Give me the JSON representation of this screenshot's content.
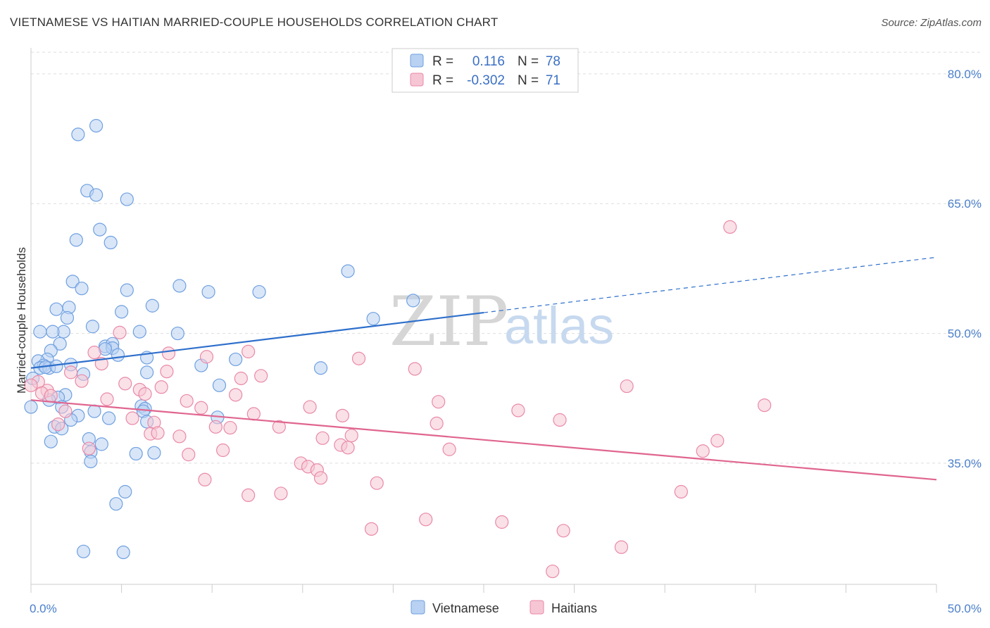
{
  "title": "VIETNAMESE VS HAITIAN MARRIED-COUPLE HOUSEHOLDS CORRELATION CHART",
  "source": "Source: ZipAtlas.com",
  "watermark": {
    "zip": "ZIP",
    "atlas": "atlas"
  },
  "chart_data": {
    "type": "scatter",
    "xlabel": "",
    "ylabel": "Married-couple Households",
    "xlim": [
      0,
      50
    ],
    "ylim": [
      21,
      83
    ],
    "x_tick_labels": [
      {
        "value": 0,
        "label": "0.0%"
      },
      {
        "value": 50,
        "label": "50.0%"
      }
    ],
    "y_tick_labels": [
      {
        "value": 35,
        "label": "35.0%"
      },
      {
        "value": 50,
        "label": "50.0%"
      },
      {
        "value": 65,
        "label": "65.0%"
      },
      {
        "value": 80,
        "label": "80.0%"
      }
    ],
    "grid": true,
    "legend": {
      "placement": "top-center",
      "rows": [
        {
          "r_label": "R =",
          "r_value": "0.116",
          "n_label": "N =",
          "n_value": "78"
        },
        {
          "r_label": "R =",
          "r_value": "-0.302",
          "n_label": "N =",
          "n_value": "71"
        }
      ]
    },
    "series": [
      {
        "name": "Vietnamese",
        "color": "#6fa0e0",
        "fill": "#b9d1f2",
        "trend": {
          "x0": 0,
          "y0": 46.0,
          "x1": 25,
          "y1": 52.4,
          "dash_x1": 50,
          "dash_y1": 58.8,
          "color": "#2e6fcc"
        },
        "points": [
          [
            3.6,
            74
          ],
          [
            2.6,
            73
          ],
          [
            3.1,
            66.5
          ],
          [
            3.6,
            66
          ],
          [
            5.3,
            65.5
          ],
          [
            3.8,
            62
          ],
          [
            2.5,
            60.8
          ],
          [
            4.4,
            60.5
          ],
          [
            17.5,
            57.2
          ],
          [
            2.3,
            56
          ],
          [
            2.8,
            55.2
          ],
          [
            8.2,
            55.5
          ],
          [
            5.3,
            55
          ],
          [
            9.8,
            54.8
          ],
          [
            12.6,
            54.8
          ],
          [
            21.1,
            53.8
          ],
          [
            2.1,
            53
          ],
          [
            1.4,
            52.8
          ],
          [
            6.7,
            53.2
          ],
          [
            5.0,
            52.5
          ],
          [
            2.0,
            51.8
          ],
          [
            18.9,
            51.7
          ],
          [
            3.4,
            50.8
          ],
          [
            0.5,
            50.2
          ],
          [
            1.8,
            50.2
          ],
          [
            1.2,
            50.2
          ],
          [
            6.0,
            50.2
          ],
          [
            8.1,
            50.0
          ],
          [
            1.6,
            48.8
          ],
          [
            4.1,
            48.5
          ],
          [
            4.5,
            48.8
          ],
          [
            4.5,
            48.3
          ],
          [
            4.8,
            47.5
          ],
          [
            1.1,
            48.0
          ],
          [
            0.9,
            47.0
          ],
          [
            0.4,
            46.8
          ],
          [
            6.4,
            47.2
          ],
          [
            11.3,
            47.0
          ],
          [
            0.7,
            46.3
          ],
          [
            0.5,
            46.0
          ],
          [
            1.0,
            46.0
          ],
          [
            9.4,
            46.3
          ],
          [
            16.0,
            46.0
          ],
          [
            6.4,
            45.5
          ],
          [
            2.9,
            45.3
          ],
          [
            0.1,
            44.8
          ],
          [
            10.4,
            44.0
          ],
          [
            1.9,
            42.9
          ],
          [
            1.5,
            42.6
          ],
          [
            1.0,
            42.3
          ],
          [
            6.1,
            41.6
          ],
          [
            0.0,
            41.5
          ],
          [
            1.7,
            41.5
          ],
          [
            6.3,
            41.3
          ],
          [
            6.2,
            41.0
          ],
          [
            3.5,
            41.0
          ],
          [
            2.6,
            40.5
          ],
          [
            4.3,
            40.2
          ],
          [
            10.3,
            40.3
          ],
          [
            2.2,
            40.0
          ],
          [
            6.4,
            39.8
          ],
          [
            1.3,
            39.2
          ],
          [
            1.7,
            39.0
          ],
          [
            3.2,
            37.8
          ],
          [
            1.1,
            37.5
          ],
          [
            3.9,
            37.2
          ],
          [
            3.3,
            36.3
          ],
          [
            5.8,
            36.1
          ],
          [
            6.8,
            36.2
          ],
          [
            3.3,
            35.2
          ],
          [
            5.2,
            31.7
          ],
          [
            4.7,
            30.3
          ],
          [
            2.9,
            24.8
          ],
          [
            5.1,
            24.7
          ],
          [
            0.8,
            46.1
          ],
          [
            1.4,
            46.2
          ],
          [
            2.2,
            46.4
          ],
          [
            4.1,
            48.2
          ]
        ]
      },
      {
        "name": "Haitians",
        "color": "#e98aa8",
        "fill": "#f6c6d4",
        "trend": {
          "x0": 0,
          "y0": 42.3,
          "x1": 50,
          "y1": 33.1,
          "color": "#e0658f"
        },
        "points": [
          [
            38.6,
            62.3
          ],
          [
            4.9,
            50.1
          ],
          [
            3.5,
            47.8
          ],
          [
            7.6,
            47.7
          ],
          [
            12.0,
            47.9
          ],
          [
            9.7,
            47.3
          ],
          [
            18.1,
            47.1
          ],
          [
            3.9,
            46.5
          ],
          [
            21.2,
            45.9
          ],
          [
            7.5,
            45.6
          ],
          [
            2.2,
            45.5
          ],
          [
            12.7,
            45.1
          ],
          [
            11.6,
            44.8
          ],
          [
            0.4,
            44.4
          ],
          [
            2.8,
            44.5
          ],
          [
            5.2,
            44.2
          ],
          [
            7.2,
            43.8
          ],
          [
            32.9,
            43.9
          ],
          [
            0.9,
            43.4
          ],
          [
            6.0,
            43.5
          ],
          [
            0.6,
            43.1
          ],
          [
            6.3,
            43.0
          ],
          [
            1.1,
            42.8
          ],
          [
            11.3,
            42.9
          ],
          [
            4.2,
            42.4
          ],
          [
            8.6,
            42.2
          ],
          [
            22.5,
            42.1
          ],
          [
            40.5,
            41.7
          ],
          [
            15.4,
            41.5
          ],
          [
            9.4,
            41.4
          ],
          [
            26.9,
            41.1
          ],
          [
            1.9,
            41.0
          ],
          [
            12.3,
            40.7
          ],
          [
            17.2,
            40.5
          ],
          [
            29.2,
            40.0
          ],
          [
            5.6,
            40.2
          ],
          [
            22.4,
            39.6
          ],
          [
            6.8,
            39.7
          ],
          [
            1.5,
            39.5
          ],
          [
            10.2,
            39.2
          ],
          [
            11.0,
            39.1
          ],
          [
            13.7,
            39.2
          ],
          [
            6.6,
            38.4
          ],
          [
            7.0,
            38.5
          ],
          [
            8.2,
            38.1
          ],
          [
            17.7,
            38.2
          ],
          [
            16.1,
            37.9
          ],
          [
            37.9,
            37.6
          ],
          [
            17.1,
            37.1
          ],
          [
            17.5,
            36.8
          ],
          [
            3.2,
            36.7
          ],
          [
            10.6,
            36.5
          ],
          [
            23.1,
            36.6
          ],
          [
            37.1,
            36.4
          ],
          [
            8.7,
            36.0
          ],
          [
            14.9,
            35.0
          ],
          [
            15.3,
            34.6
          ],
          [
            15.8,
            34.2
          ],
          [
            16.0,
            33.3
          ],
          [
            9.6,
            33.1
          ],
          [
            19.1,
            32.7
          ],
          [
            12.0,
            31.3
          ],
          [
            13.8,
            31.5
          ],
          [
            35.9,
            31.7
          ],
          [
            21.8,
            28.5
          ],
          [
            26.0,
            28.2
          ],
          [
            29.4,
            27.2
          ],
          [
            18.8,
            27.4
          ],
          [
            32.6,
            25.3
          ],
          [
            28.8,
            22.5
          ],
          [
            0.0,
            44.0
          ]
        ]
      }
    ]
  }
}
